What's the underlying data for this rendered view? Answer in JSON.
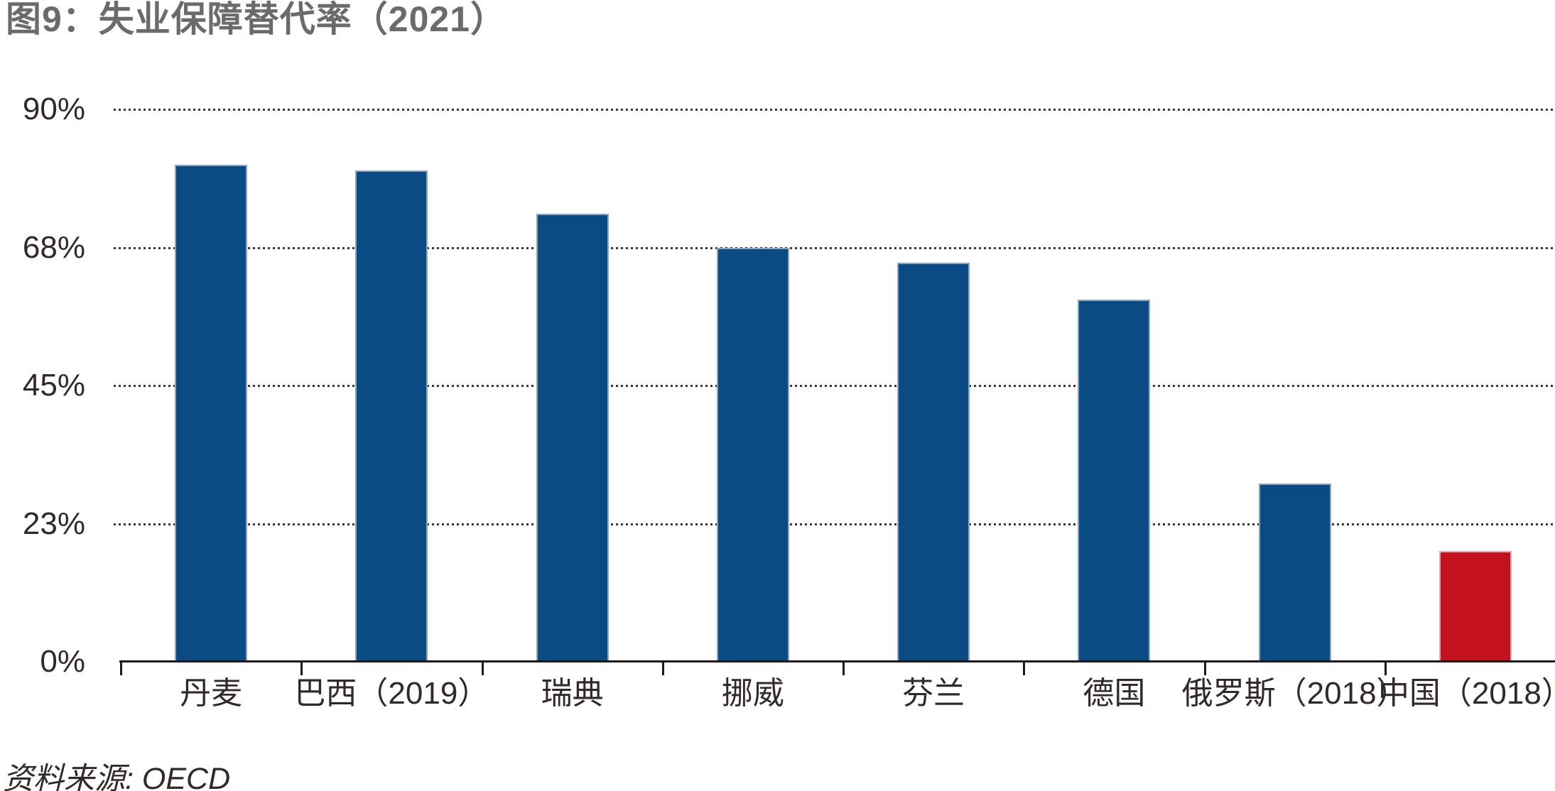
{
  "title": "图9：失业保障替代率（2021）",
  "source_note": "资料来源: OECD",
  "colors": {
    "title_text": "#6B6B6B",
    "axis_text": "#322A27",
    "axis_line": "#231815",
    "grid_dot": "#3C3633",
    "bar_blue": "#0B4B83",
    "bar_blue_edge": "#8BA5C3",
    "bar_red": "#C3121D",
    "bar_red_edge": "#E5A9AC"
  },
  "chart_data": {
    "type": "bar",
    "title": "图9：失业保障替代率（2021）",
    "categories": [
      "丹麦",
      "巴西（2019）",
      "瑞典",
      "挪威",
      "芬兰",
      "德国",
      "俄罗斯（2018）",
      "中国（2018）"
    ],
    "values": [
      81,
      80,
      73,
      67.5,
      65,
      59,
      29,
      18
    ],
    "unit": "%",
    "bar_color_keys": [
      "bar_blue",
      "bar_blue",
      "bar_blue",
      "bar_blue",
      "bar_blue",
      "bar_blue",
      "bar_blue",
      "bar_red"
    ],
    "ylim": [
      0,
      90
    ],
    "ytick_values": [
      0,
      22.5,
      45,
      67.5,
      90
    ],
    "ytick_labels": [
      "0%",
      "23%",
      "45%",
      "68%",
      "90%"
    ],
    "grid": "horizontal-dotted",
    "legend": "none",
    "source": "资料来源: OECD"
  }
}
